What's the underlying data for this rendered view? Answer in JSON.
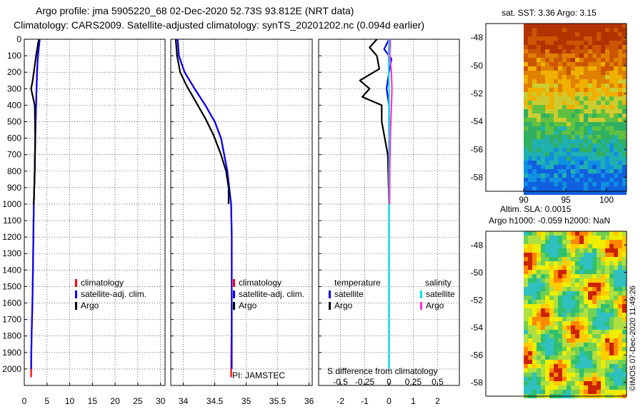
{
  "title_line1": "Argo profile: jma 5905220_68 02-Dec-2020 52.73S 93.812E (NRT data)",
  "title_line2": "Climatology: CARS2009. Satellite-adjusted climatology: synTS_20201202.nc (0.094d earlier)",
  "sst_title": "sat. SST: 3.36 Argo: 3.15",
  "altim_title_1": "Altim. SLA: 0.0015",
  "altim_title_2": "Argo h1000: -0.059 h2000: NaN",
  "pi_label": "PI: JAMSTEC",
  "watermark": "©IMOS 07-Dec-2020 11:49:26",
  "colors": {
    "climatology": "#ff0000",
    "satellite": "#0000ff",
    "argo": "#000000",
    "salinity_sat": "#00e5e5",
    "salinity_argo": "#ff33cc"
  },
  "legend_temp": {
    "climatology": "climatology",
    "satellite": "satellite-adj. clim.",
    "argo": "Argo"
  },
  "legend_sal": {
    "climatology": "climatology",
    "satellite": "satellite-adj. clim.",
    "argo": "Argo"
  },
  "legend_diff": {
    "temperature": "temperature",
    "salinity": "salinity",
    "t_sat": "satellite",
    "t_argo": "Argo",
    "s_sat": "satellite",
    "s_argo": "Argo"
  },
  "chart_data": [
    {
      "type": "line",
      "name": "temperature-profile",
      "ylim": [
        2100,
        0
      ],
      "yticks": [
        0,
        100,
        200,
        300,
        400,
        500,
        600,
        700,
        800,
        900,
        1000,
        1100,
        1200,
        1300,
        1400,
        1500,
        1600,
        1700,
        1800,
        1900,
        2000
      ],
      "xlim": [
        0,
        31
      ],
      "xticks": [
        0,
        5,
        10,
        15,
        20,
        25,
        30
      ],
      "series": [
        {
          "name": "climatology",
          "color": "#ff0000",
          "x": [
            3.4,
            3.0,
            2.8,
            2.6,
            2.4,
            2.3,
            2.1,
            2.0,
            1.9,
            1.8,
            1.6,
            1.5
          ],
          "y": [
            0,
            100,
            200,
            400,
            600,
            800,
            1000,
            1200,
            1400,
            1600,
            1800,
            2050
          ]
        },
        {
          "name": "satellite-adj. clim.",
          "color": "#0000ff",
          "x": [
            3.4,
            3.0,
            2.8,
            2.6,
            2.4,
            2.3,
            2.1,
            2.0,
            1.9,
            1.8,
            1.6,
            1.5
          ],
          "y": [
            0,
            100,
            200,
            400,
            600,
            800,
            1000,
            1200,
            1400,
            1600,
            1800,
            2000
          ]
        },
        {
          "name": "Argo",
          "color": "#000000",
          "x": [
            3.2,
            2.9,
            2.6,
            2.2,
            1.8,
            1.5,
            2.3,
            2.4,
            2.3,
            2.1
          ],
          "y": [
            0,
            50,
            100,
            180,
            260,
            300,
            400,
            600,
            800,
            1000
          ]
        }
      ]
    },
    {
      "type": "line",
      "name": "salinity-profile",
      "ylim": [
        2100,
        0
      ],
      "xlim": [
        33.8,
        36.05
      ],
      "xticks": [
        34,
        34.5,
        35,
        35.5,
        36
      ],
      "series": [
        {
          "name": "climatology",
          "color": "#ff0000",
          "x": [
            33.91,
            33.93,
            34.02,
            34.18,
            34.35,
            34.5,
            34.6,
            34.7,
            34.76,
            34.77,
            34.77,
            34.76
          ],
          "y": [
            0,
            100,
            200,
            300,
            400,
            500,
            600,
            800,
            1000,
            1200,
            1600,
            2050
          ]
        },
        {
          "name": "satellite-adj. clim.",
          "color": "#0000ff",
          "x": [
            33.91,
            33.93,
            34.02,
            34.18,
            34.35,
            34.5,
            34.6,
            34.7,
            34.76,
            34.77,
            34.77,
            34.77
          ],
          "y": [
            0,
            100,
            200,
            300,
            400,
            500,
            600,
            800,
            1000,
            1200,
            1600,
            2000
          ]
        },
        {
          "name": "Argo",
          "color": "#000000",
          "x": [
            33.88,
            33.9,
            33.95,
            34.05,
            34.2,
            34.35,
            34.48,
            34.6,
            34.68,
            34.72,
            34.72
          ],
          "y": [
            0,
            100,
            200,
            280,
            380,
            480,
            580,
            700,
            800,
            900,
            1000
          ]
        }
      ]
    },
    {
      "type": "line",
      "name": "difference-from-climatology",
      "ylim": [
        2100,
        0
      ],
      "xlim": [
        -2.9,
        2.9
      ],
      "xticks": [
        -2,
        -1,
        0,
        1,
        2
      ],
      "s_ticks": [
        -0.5,
        -0.25,
        0,
        0.25,
        0.5
      ],
      "s_scale": 4,
      "xlabel": "S difference from climatology",
      "series": [
        {
          "name": "temperature satellite",
          "color": "#0000ff",
          "x": [
            0,
            -0.2,
            0.1,
            0,
            -0.1,
            0,
            0,
            0,
            0,
            0
          ],
          "y": [
            0,
            60,
            120,
            200,
            300,
            400,
            600,
            1000,
            1500,
            2000
          ]
        },
        {
          "name": "temperature Argo",
          "color": "#000000",
          "x": [
            -0.5,
            -0.8,
            -0.5,
            -0.4,
            -1.2,
            -0.8,
            -1.1,
            -0.3,
            -0.3,
            -0.05,
            0
          ],
          "y": [
            0,
            50,
            100,
            180,
            250,
            300,
            350,
            400,
            500,
            700,
            1000
          ]
        },
        {
          "name": "salinity satellite",
          "color": "#00e5e5",
          "x": [
            0,
            -0.02,
            0,
            0.01,
            0,
            0,
            0
          ],
          "y": [
            0,
            100,
            300,
            500,
            800,
            1500,
            2000
          ]
        },
        {
          "name": "salinity Argo",
          "color": "#ff33cc",
          "x": [
            0.05,
            0.03,
            0.1,
            0.12,
            0.1,
            0.05,
            0.03,
            0.02
          ],
          "y": [
            0,
            100,
            200,
            300,
            400,
            600,
            800,
            1000
          ]
        }
      ]
    }
  ],
  "map_sst": {
    "yticks": [
      -48,
      -50,
      -52,
      -54,
      -56,
      -58
    ],
    "xticks": [
      90,
      95,
      100
    ],
    "colors": [
      "#b33300",
      "#cc5500",
      "#e08000",
      "#f0b000",
      "#cccc30",
      "#60c040",
      "#30b060",
      "#20b0b0",
      "#1090e0",
      "#1060e0"
    ]
  },
  "map_sla": {
    "yticks": [
      -48,
      -50,
      -52,
      -54,
      -56,
      -58
    ],
    "colors": [
      "#cc2200",
      "#ff8800",
      "#ffcc00",
      "#eeee00",
      "#b0e040",
      "#70d050",
      "#30c070",
      "#30c0c0"
    ]
  }
}
